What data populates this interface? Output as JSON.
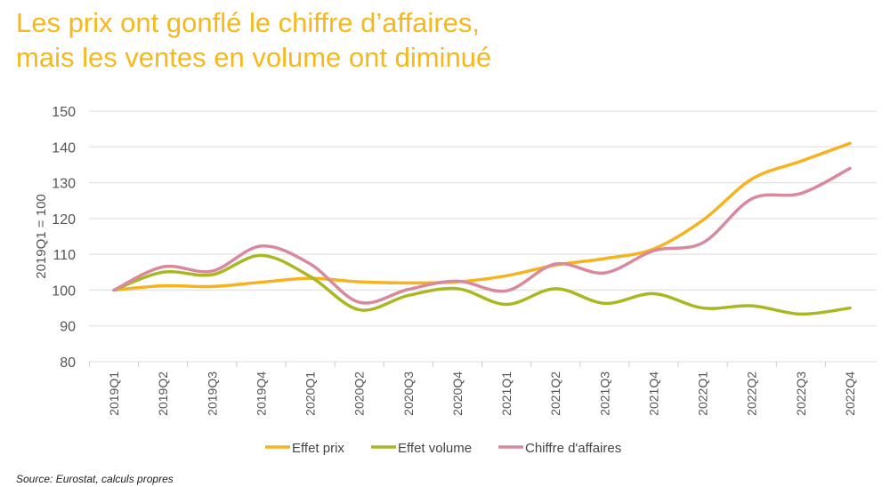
{
  "title_lines": [
    "Les prix ont gonflé le chiffre d’affaires,",
    "mais les ventes en volume ont diminué"
  ],
  "source": "Source: Eurostat, calculs propres",
  "chart_data": {
    "type": "line",
    "title": "Les prix ont gonflé le chiffre d’affaires, mais les ventes en volume ont diminué",
    "ylabel": "2019Q1 = 100",
    "xlabel": "",
    "ylim": [
      80,
      150
    ],
    "yticks": [
      80,
      90,
      100,
      110,
      120,
      130,
      140,
      150
    ],
    "grid": true,
    "legend": "bottom",
    "categories": [
      "2019Q1",
      "2019Q2",
      "2019Q3",
      "2019Q4",
      "2020Q1",
      "2020Q2",
      "2020Q3",
      "2020Q4",
      "2021Q1",
      "2021Q2",
      "2021Q3",
      "2021Q4",
      "2022Q1",
      "2022Q2",
      "2022Q3",
      "2022Q4"
    ],
    "series": [
      {
        "name": "Effet prix",
        "color": "#f7b21f",
        "values": [
          100,
          101.2,
          101,
          102.2,
          103.3,
          102.3,
          102,
          102.3,
          104,
          107,
          108.8,
          111.5,
          119.5,
          131,
          136,
          141
        ]
      },
      {
        "name": "Effet volume",
        "color": "#a9b820",
        "values": [
          100,
          105,
          104.3,
          109.7,
          103.8,
          94.5,
          98.5,
          100.4,
          96,
          100.4,
          96.3,
          99,
          95,
          95.6,
          93.3,
          95
        ]
      },
      {
        "name": "Chiffre d'affaires",
        "color": "#d9899e",
        "values": [
          100,
          106.5,
          105.3,
          112.3,
          107.3,
          96.6,
          100.2,
          102.5,
          99.8,
          107.3,
          104.8,
          111,
          113.2,
          125.5,
          127,
          134
        ]
      }
    ]
  }
}
